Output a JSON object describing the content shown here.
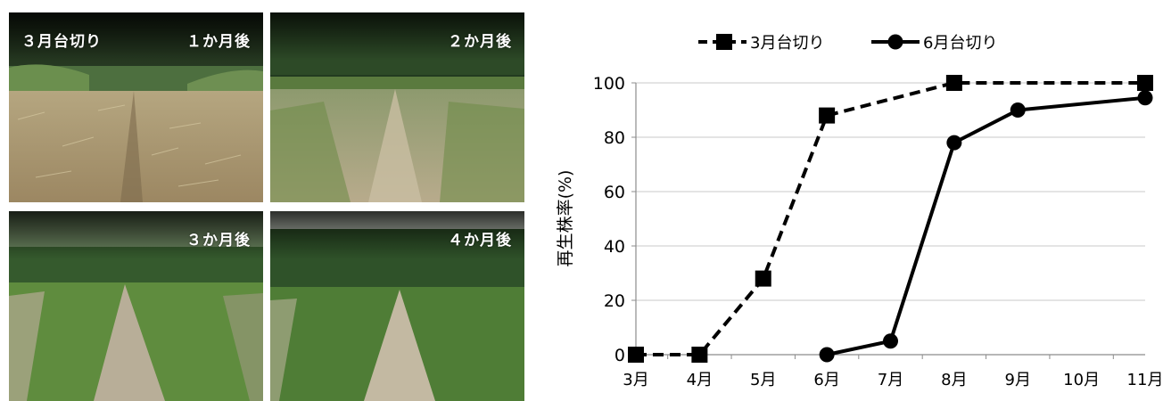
{
  "photos": [
    {
      "id": "p1",
      "label_left": "３月台切り",
      "label_right": "１か月後"
    },
    {
      "id": "p2",
      "label_left": "",
      "label_right": "２か月後"
    },
    {
      "id": "p3",
      "label_left": "",
      "label_right": "３か月後"
    },
    {
      "id": "p4",
      "label_left": "",
      "label_right": "４か月後"
    }
  ],
  "chart_data": {
    "type": "line",
    "title": "",
    "xlabel": "",
    "ylabel": "再生株率(%)",
    "categories": [
      "3月",
      "4月",
      "5月",
      "6月",
      "7月",
      "8月",
      "9月",
      "10月",
      "11月"
    ],
    "ylim": [
      0,
      100
    ],
    "yticks": [
      0,
      20,
      40,
      60,
      80,
      100
    ],
    "grid": true,
    "legend_position": "top",
    "series": [
      {
        "name": "3月台切り",
        "style": "dashed",
        "marker": "square",
        "values": [
          0,
          0,
          28,
          88,
          100,
          100,
          100,
          100,
          100
        ],
        "points": [
          [
            0,
            0
          ],
          [
            1,
            0
          ],
          [
            2,
            28
          ],
          [
            3,
            88
          ],
          [
            5,
            100
          ],
          [
            8,
            100
          ]
        ]
      },
      {
        "name": "6月台切り",
        "style": "solid",
        "marker": "circle",
        "values": [
          null,
          null,
          null,
          0,
          5,
          78,
          90,
          null,
          94.5
        ],
        "points": [
          [
            3,
            0
          ],
          [
            4,
            5
          ],
          [
            5,
            78
          ],
          [
            6,
            90
          ],
          [
            8,
            94.5
          ]
        ]
      }
    ],
    "colors": {
      "line": "#000000",
      "grid": "#c8c8c8"
    }
  }
}
